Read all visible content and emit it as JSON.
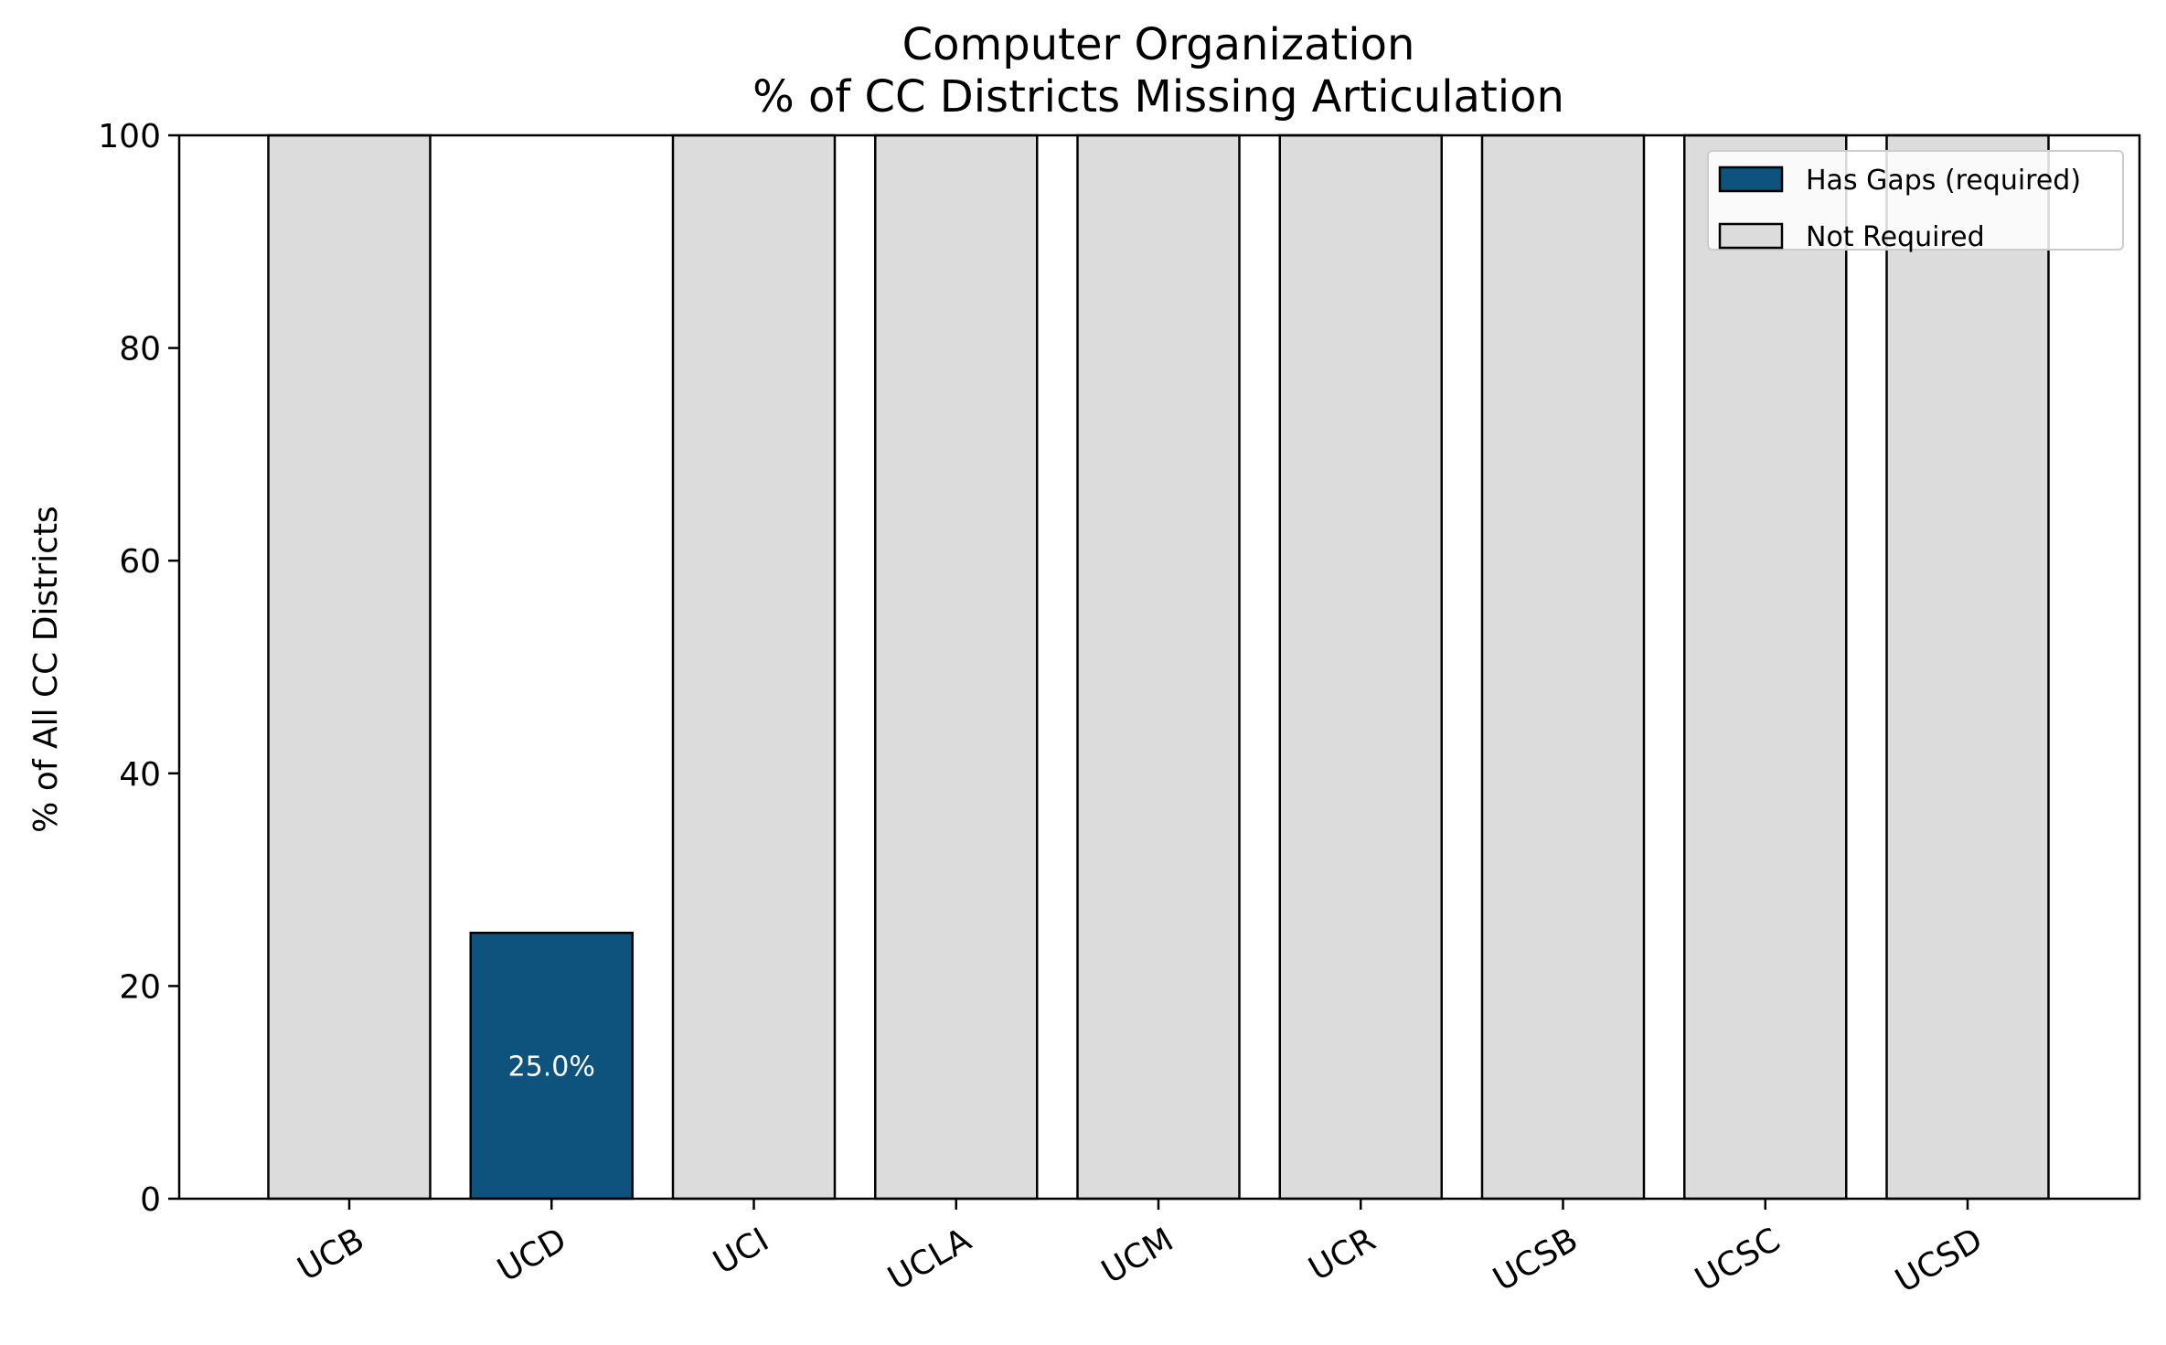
{
  "chart_data": {
    "type": "bar",
    "title": "Computer Organization",
    "subtitle": "% of CC Districts Missing Articulation",
    "xlabel": "",
    "ylabel": "% of All CC Districts",
    "ylim": [
      0,
      100
    ],
    "yticks": [
      "0",
      "20",
      "40",
      "60",
      "80",
      "100"
    ],
    "categories": [
      "UCB",
      "UCD",
      "UCI",
      "UCLA",
      "UCM",
      "UCR",
      "UCSB",
      "UCSC",
      "UCSD"
    ],
    "series": [
      {
        "name": "Has Gaps (required)",
        "color": "#0e527e",
        "values": [
          null,
          25.0,
          null,
          null,
          null,
          null,
          null,
          null,
          null
        ],
        "labels": [
          "",
          "25.0%",
          "",
          "",
          "",
          "",
          "",
          "",
          ""
        ]
      },
      {
        "name": "Not Required",
        "color": "#dcdcdc",
        "values": [
          100,
          null,
          100,
          100,
          100,
          100,
          100,
          100,
          100
        ]
      }
    ],
    "grid": false,
    "legend_position": "top-right"
  }
}
